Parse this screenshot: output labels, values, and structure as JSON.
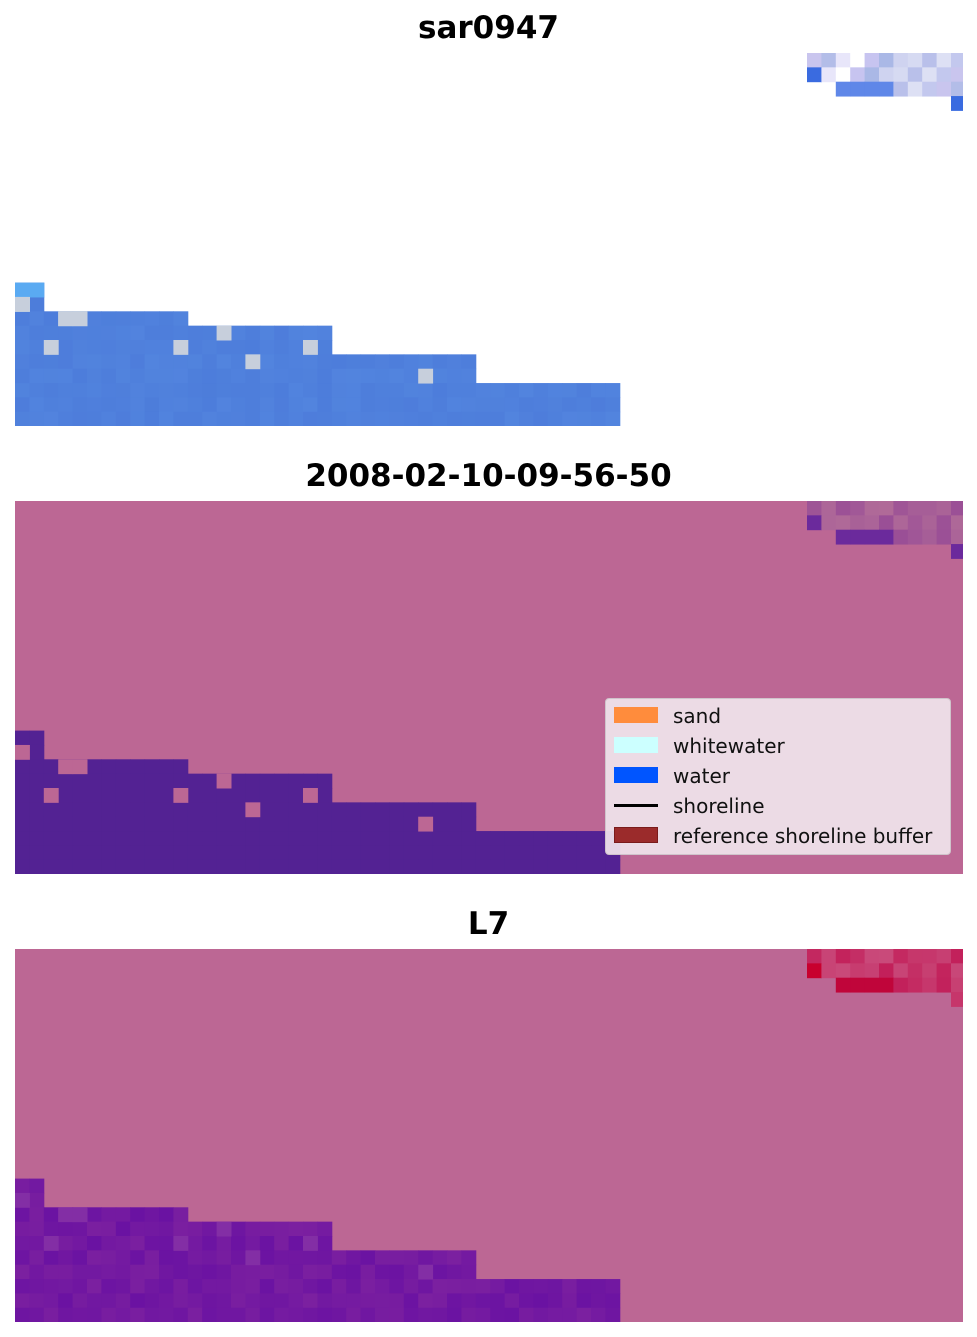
{
  "panels": [
    {
      "title": "sar0947",
      "view": "sar-rgb-image"
    },
    {
      "title": "2008-02-10-09-56-50",
      "view": "classified-image"
    },
    {
      "title": "L7",
      "view": "mndwi-image"
    }
  ],
  "legend": {
    "items": [
      {
        "label": "sand",
        "type": "patch",
        "color": "#ff8c3c"
      },
      {
        "label": "whitewater",
        "type": "patch",
        "color": "#ccffff"
      },
      {
        "label": "water",
        "type": "patch",
        "color": "#0055ff"
      },
      {
        "label": "shoreline",
        "type": "line",
        "color": "#000000"
      },
      {
        "label": "reference shoreline buffer",
        "type": "patch",
        "color": "#9b2b2b"
      }
    ]
  },
  "colors": {
    "background_mask": "#bc6794",
    "classified_water": "#532293",
    "rgb_water": "#5284de",
    "mndwi_water": "#6a12a2",
    "mndwi_land_edge": "#c1184f"
  }
}
